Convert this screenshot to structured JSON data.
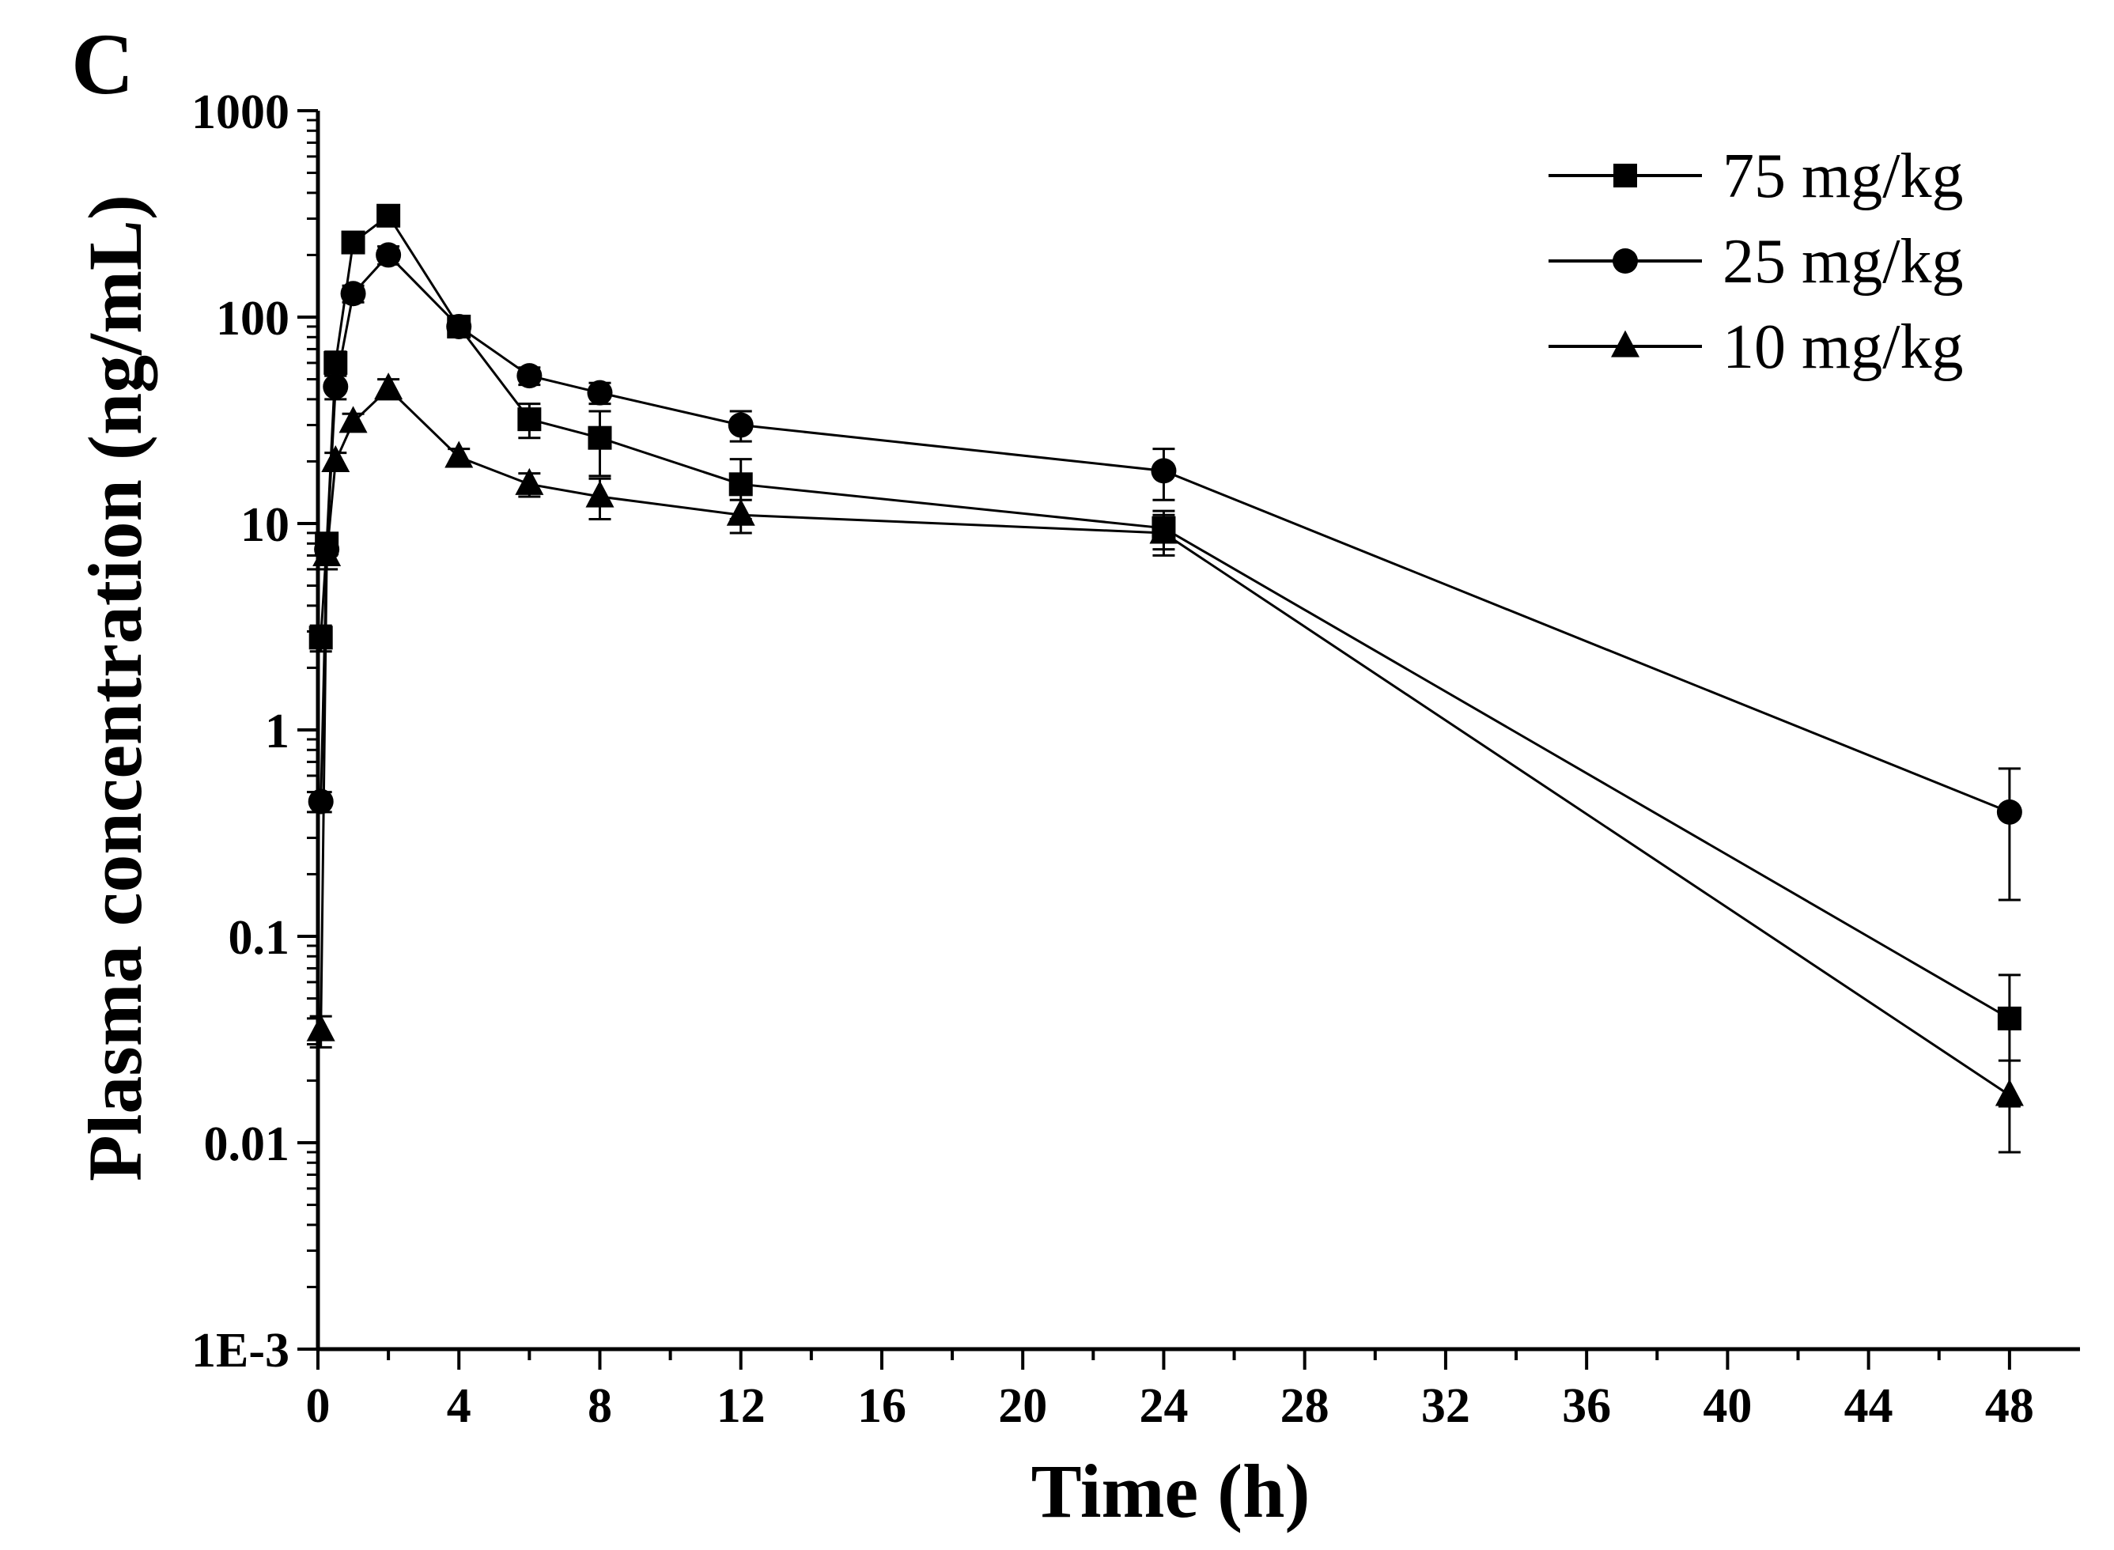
{
  "chart_data": {
    "type": "line",
    "panel_label": "C",
    "xlabel": "Time (h)",
    "ylabel": "Plasma concentration (ng/mL)",
    "yscale": "log",
    "xlim": [
      0,
      50
    ],
    "ylim": [
      0.001,
      1000
    ],
    "x_ticks": [
      0,
      4,
      8,
      12,
      16,
      20,
      24,
      28,
      32,
      36,
      40,
      44,
      48
    ],
    "x_tick_labels": [
      "0",
      "4",
      "8",
      "12",
      "16",
      "20",
      "24",
      "28",
      "32",
      "36",
      "40",
      "44",
      "48"
    ],
    "y_ticks": [
      0.001,
      0.01,
      0.1,
      1,
      10,
      100,
      1000
    ],
    "y_tick_labels": [
      "1E-3",
      "0.01",
      "0.1",
      "1",
      "10",
      "100",
      "1000"
    ],
    "legend_position": "top-right",
    "series": [
      {
        "name": "75 mg/kg",
        "marker": "square",
        "x": [
          0.083,
          0.25,
          0.5,
          1,
          2,
          4,
          6,
          8,
          12,
          24,
          48
        ],
        "values": [
          2.8,
          8.0,
          60,
          230,
          310,
          90,
          32,
          26,
          15.5,
          9.5,
          0.04
        ],
        "error": [
          0.4,
          1.0,
          8,
          20,
          25,
          10,
          6,
          9,
          5,
          2,
          0.025
        ]
      },
      {
        "name": "25 mg/kg",
        "marker": "circle",
        "x": [
          0.083,
          0.25,
          0.5,
          1,
          2,
          4,
          6,
          8,
          12,
          24,
          48
        ],
        "values": [
          0.45,
          7.5,
          46,
          130,
          200,
          90,
          52,
          43,
          30,
          18,
          0.4
        ],
        "error": [
          0.05,
          1.0,
          6,
          12,
          20,
          8,
          5,
          5,
          5,
          5,
          0.25
        ]
      },
      {
        "name": "10 mg/kg",
        "marker": "triangle",
        "x": [
          0.083,
          0.25,
          0.5,
          1,
          2,
          4,
          6,
          8,
          12,
          24,
          48
        ],
        "values": [
          0.035,
          7.0,
          20,
          31,
          45,
          21,
          15.5,
          13.5,
          11,
          9,
          0.017
        ],
        "error": [
          0.006,
          1.0,
          2,
          3,
          5,
          2,
          2,
          3,
          2,
          2,
          0.008
        ]
      }
    ]
  }
}
